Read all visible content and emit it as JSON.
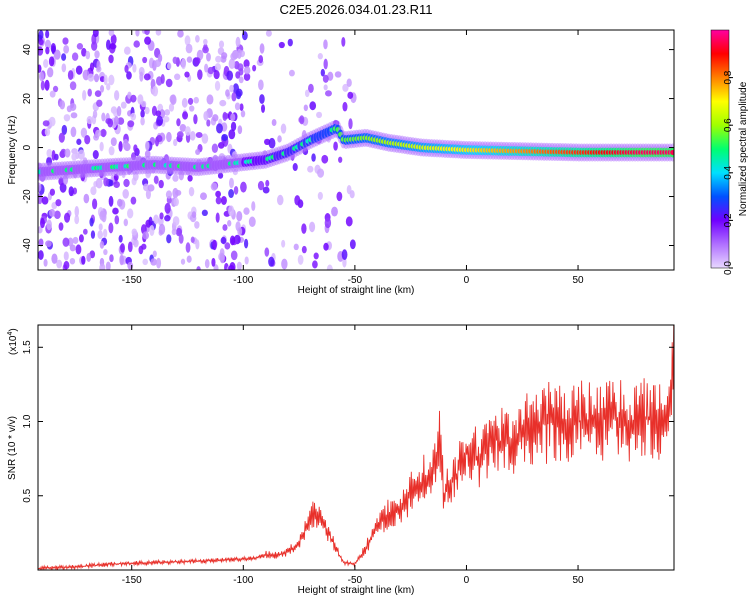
{
  "title": "C2E5.2026.034.01.23.R11",
  "colorbar": {
    "label": "Normalized spectral amplitude",
    "ticks": [
      "0.0",
      "0.2",
      "0.4",
      "0.6",
      "0.8"
    ],
    "tick_values": [
      0.0,
      0.2,
      0.4,
      0.6,
      0.8
    ],
    "colors": [
      "#e8d8ff",
      "#b070ff",
      "#7000ff",
      "#0050ff",
      "#00e0ff",
      "#00ff70",
      "#a0ff00",
      "#ffff00",
      "#ff8000",
      "#ff0000",
      "#ff00a0"
    ]
  },
  "chart_data": [
    {
      "type": "heatmap",
      "xlabel": "Height of straight line (km)",
      "ylabel": "Frequency (Hz)",
      "xlim": [
        -192,
        93
      ],
      "ylim": [
        -50,
        48
      ],
      "xticks": [
        -150,
        -100,
        -50,
        0,
        50
      ],
      "xtick_labels": [
        "-150",
        "-100",
        "-50",
        "0",
        "50"
      ],
      "yticks": [
        -40,
        -20,
        0,
        20,
        40
      ],
      "ytick_labels": [
        "-40",
        "-20",
        "0",
        "20",
        "40"
      ],
      "ridge": [
        {
          "x": -192,
          "y": -10
        },
        {
          "x": -160,
          "y": -8
        },
        {
          "x": -140,
          "y": -7
        },
        {
          "x": -120,
          "y": -8
        },
        {
          "x": -100,
          "y": -6
        },
        {
          "x": -90,
          "y": -5
        },
        {
          "x": -80,
          "y": -2
        },
        {
          "x": -70,
          "y": 3
        },
        {
          "x": -58,
          "y": 8
        },
        {
          "x": -55,
          "y": 3
        },
        {
          "x": -45,
          "y": 4
        },
        {
          "x": -35,
          "y": 2
        },
        {
          "x": -20,
          "y": 0
        },
        {
          "x": 0,
          "y": -1
        },
        {
          "x": 50,
          "y": -2
        },
        {
          "x": 90,
          "y": -2
        }
      ]
    },
    {
      "type": "line",
      "xlabel": "Height of straight line (km)",
      "ylabel": "SNR (10 * v/v)",
      "y_multiplier_label": "(x10",
      "y_multiplier_exp": "4",
      "xlim": [
        -192,
        93
      ],
      "ylim": [
        0,
        1.65
      ],
      "xticks": [
        -150,
        -100,
        -50,
        0,
        50
      ],
      "xtick_labels": [
        "-150",
        "-100",
        "-50",
        "0",
        "50"
      ],
      "yticks": [
        0.5,
        1.0,
        1.5
      ],
      "ytick_labels": [
        "0.5",
        "1.0",
        "1.5"
      ],
      "series": [
        {
          "color": "#e8302a",
          "x": [
            -192,
            -175,
            -160,
            -140,
            -120,
            -105,
            -95,
            -90,
            -85,
            -80,
            -75,
            -72,
            -68,
            -65,
            -60,
            -57,
            -55,
            -50,
            -45,
            -40,
            -35,
            -30,
            -25,
            -20,
            -15,
            -12,
            -10,
            -5,
            0,
            5,
            10,
            12,
            15,
            20,
            25,
            30,
            40,
            50,
            60,
            65,
            70,
            80,
            90,
            93
          ],
          "y": [
            0.01,
            0.02,
            0.04,
            0.05,
            0.06,
            0.07,
            0.08,
            0.1,
            0.1,
            0.12,
            0.18,
            0.28,
            0.38,
            0.32,
            0.2,
            0.1,
            0.05,
            0.04,
            0.15,
            0.3,
            0.38,
            0.42,
            0.52,
            0.6,
            0.65,
            0.88,
            0.5,
            0.62,
            0.78,
            0.75,
            0.85,
            0.9,
            0.85,
            0.88,
            0.92,
            0.97,
            1.0,
            1.0,
            1.0,
            1.05,
            1.0,
            1.02,
            1.03,
            1.45
          ]
        }
      ]
    }
  ]
}
